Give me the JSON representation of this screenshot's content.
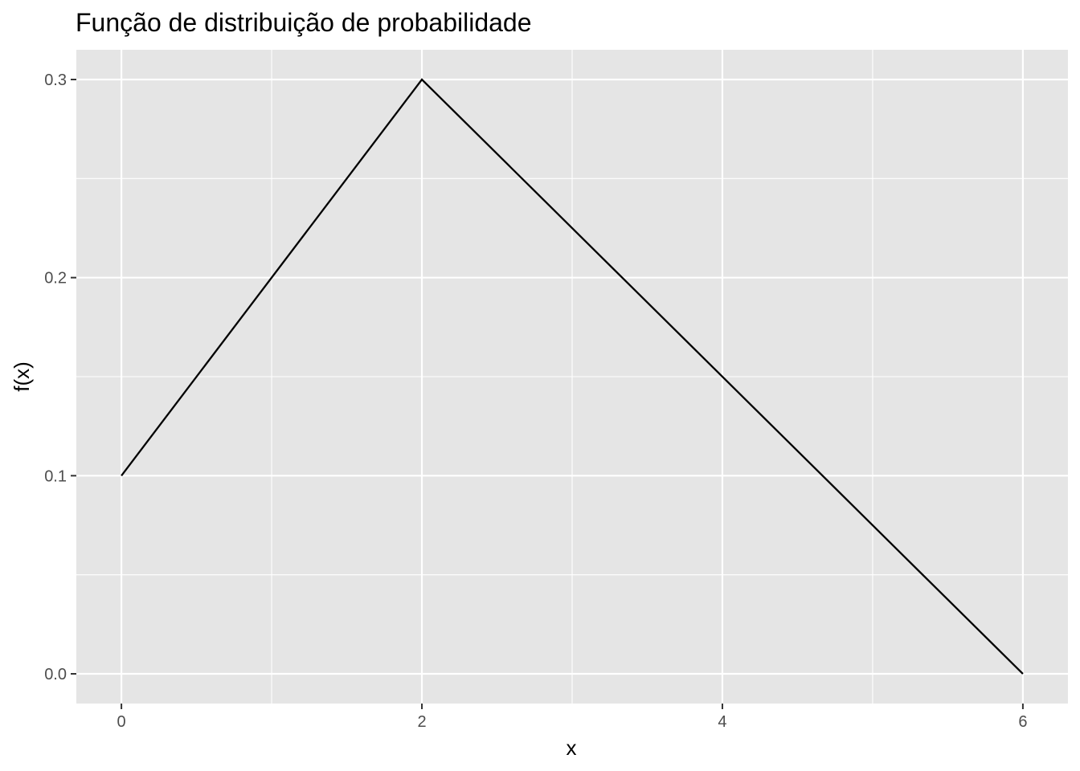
{
  "chart_data": {
    "type": "line",
    "title": "Função de distribuição de probabilidade",
    "xlabel": "x",
    "ylabel": "f(x)",
    "x": [
      0,
      2,
      6
    ],
    "y": [
      0.1,
      0.3,
      0.0
    ],
    "xlim": [
      -0.3,
      6.3
    ],
    "ylim": [
      -0.015,
      0.315
    ],
    "x_ticks": [
      0,
      2,
      4,
      6
    ],
    "x_tick_labels": [
      "0",
      "2",
      "4",
      "6"
    ],
    "x_minor_ticks": [
      1,
      3,
      5
    ],
    "y_ticks": [
      0.0,
      0.1,
      0.2,
      0.3
    ],
    "y_tick_labels": [
      "0.0",
      "0.1",
      "0.2",
      "0.3"
    ],
    "y_minor_ticks": [
      0.05,
      0.15,
      0.25
    ],
    "grid": true,
    "legend": "none",
    "colors": {
      "panel_background": "#e5e5e5",
      "grid": "#ffffff",
      "line": "#000000",
      "tick_mark": "#333333",
      "tick_label": "#4d4d4d"
    }
  }
}
